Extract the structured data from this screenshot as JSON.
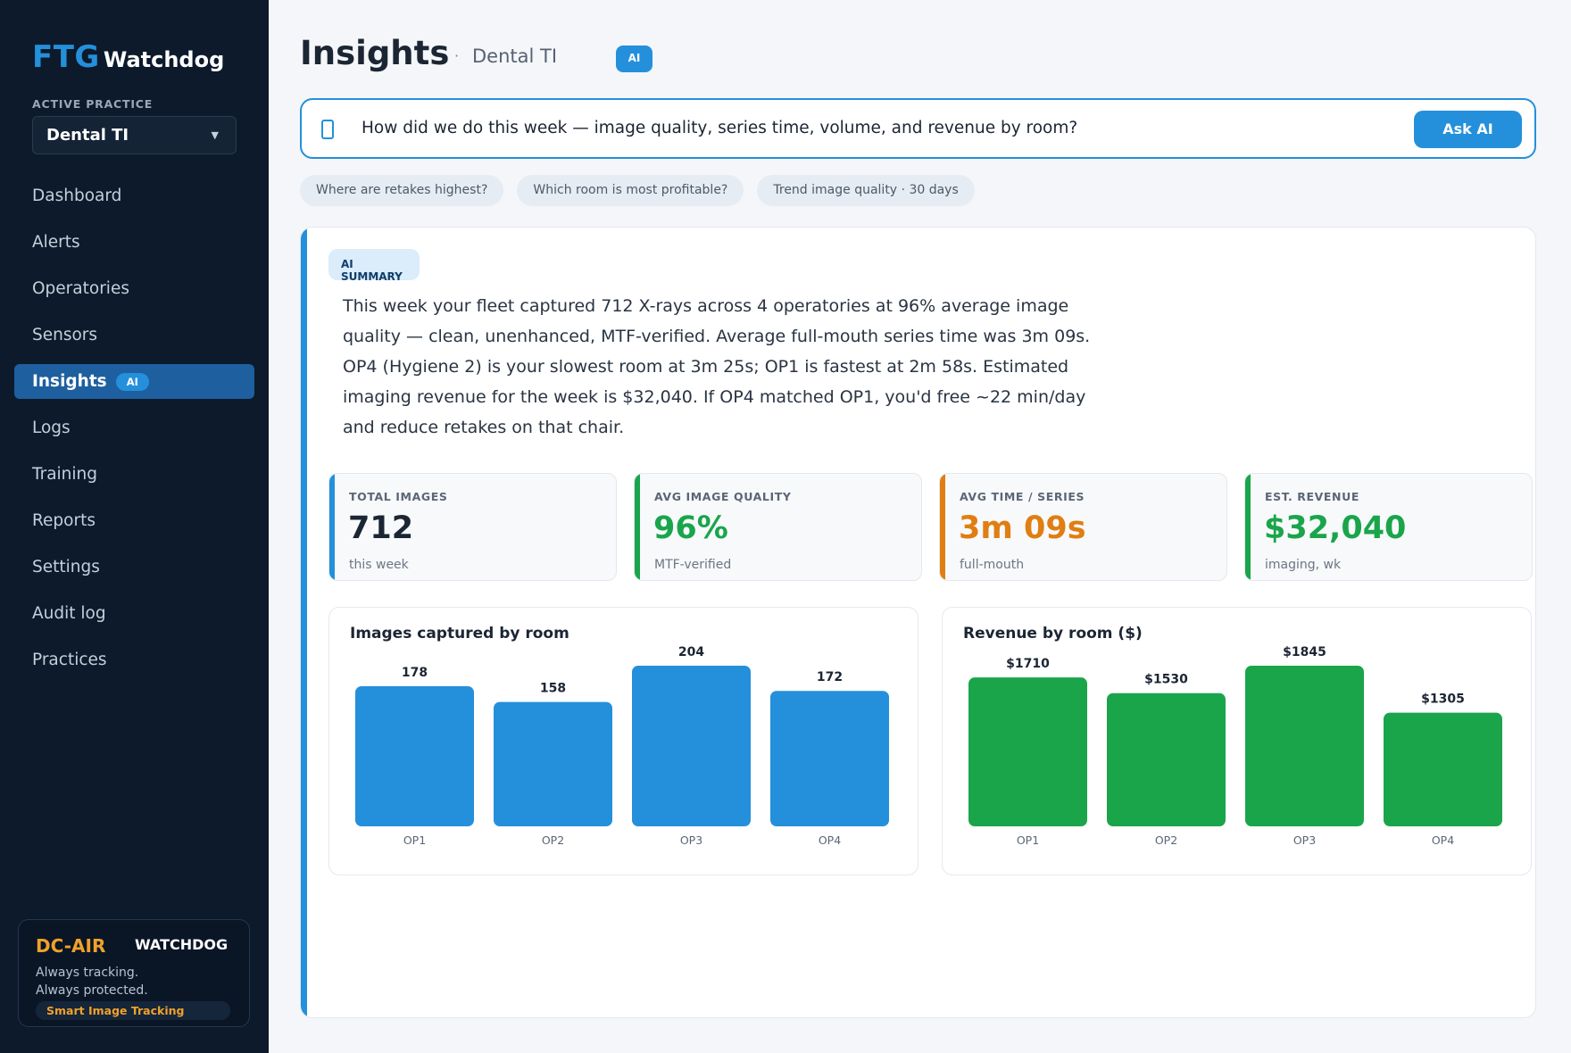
{
  "sidebar": {
    "brand_ftg": "FTG",
    "brand_name": "Watchdog",
    "active_practice_label": "ACTIVE PRACTICE",
    "practice_value": "Dental TI",
    "items": [
      {
        "label": "Dashboard"
      },
      {
        "label": "Alerts"
      },
      {
        "label": "Operatories"
      },
      {
        "label": "Sensors"
      },
      {
        "label": "Insights",
        "badge": "AI",
        "active": true
      },
      {
        "label": "Logs"
      },
      {
        "label": "Training"
      },
      {
        "label": "Reports"
      },
      {
        "label": "Settings"
      },
      {
        "label": "Audit log"
      },
      {
        "label": "Practices"
      }
    ],
    "promo": {
      "brand": "DC-AIR",
      "product": "WATCHDOG",
      "line1": "Always tracking.",
      "line2": "Always protected.",
      "tagline": "Smart Image Tracking"
    }
  },
  "header": {
    "title": "Insights",
    "separator": "·",
    "practice": "Dental TI",
    "ai_badge": "AI"
  },
  "ask": {
    "question": "How did we do this week — image quality, series time, volume, and revenue by room?",
    "button": "Ask AI",
    "icon": "chat-icon"
  },
  "suggestions": [
    "Where are retakes highest?",
    "Which room is most profitable?",
    "Trend image quality · 30 days"
  ],
  "summary": {
    "badge": "AI SUMMARY",
    "text": "This week your fleet captured 712 X-rays across 4 operatories at 96% average image quality — clean, unenhanced, MTF-verified. Average full-mouth series time was 3m 09s. OP4 (Hygiene 2) is your slowest room at 3m 25s; OP1 is fastest at 2m 58s. Estimated imaging revenue for the week is $32,040. If OP4 matched OP1, you'd free ~22 min/day and reduce retakes on that chair."
  },
  "kpis": [
    {
      "label": "TOTAL IMAGES",
      "value": "712",
      "sub": "this week",
      "accent": "#2490db",
      "value_color": "#1c2533"
    },
    {
      "label": "AVG IMAGE QUALITY",
      "value": "96%",
      "sub": "MTF-verified",
      "accent": "#1aa54b",
      "value_color": "#1aa54b"
    },
    {
      "label": "AVG TIME / SERIES",
      "value": "3m 09s",
      "sub": "full-mouth",
      "accent": "#e07e12",
      "value_color": "#e07e12"
    },
    {
      "label": "EST. REVENUE",
      "value": "$32,040",
      "sub": "imaging, wk",
      "accent": "#1aa54b",
      "value_color": "#1aa54b"
    }
  ],
  "chart_data": [
    {
      "type": "bar",
      "title": "Images captured by room",
      "categories": [
        "OP1",
        "OP2",
        "OP3",
        "OP4"
      ],
      "values": [
        178,
        158,
        204,
        172
      ],
      "value_labels": [
        "178",
        "158",
        "204",
        "172"
      ],
      "color": "#2490db",
      "ylim": [
        0,
        204
      ]
    },
    {
      "type": "bar",
      "title": "Revenue by room ($)",
      "categories": [
        "OP1",
        "OP2",
        "OP3",
        "OP4"
      ],
      "values": [
        1710,
        1530,
        1845,
        1305
      ],
      "value_labels": [
        "$1710",
        "$1530",
        "$1845",
        "$1305"
      ],
      "color": "#1aa54b",
      "ylim": [
        0,
        1845
      ]
    }
  ]
}
